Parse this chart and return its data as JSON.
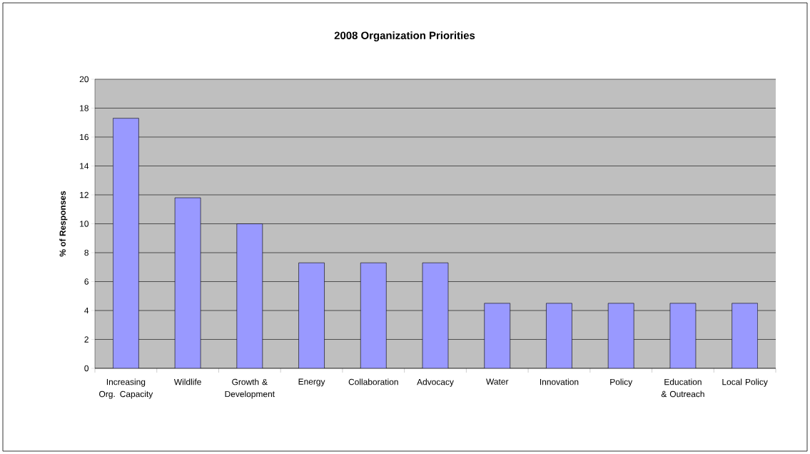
{
  "chart_data": {
    "type": "bar",
    "title": "2008 Organization Priorities",
    "ylabel": "% of Responses",
    "categories": [
      "Increasing Org. Capacity",
      "Wildlife",
      "Growth & Development",
      "Energy",
      "Collaboration",
      "Advocacy",
      "Water",
      "Innovation",
      "Policy",
      "Education & Outreach",
      "Local Policy"
    ],
    "values": [
      17.3,
      11.8,
      10.0,
      7.3,
      7.3,
      7.3,
      4.5,
      4.5,
      4.5,
      4.5,
      4.5
    ],
    "color": "#9999ff",
    "ylim": [
      0,
      20
    ],
    "yticks": [
      0,
      2,
      4,
      6,
      8,
      10,
      12,
      14,
      16,
      18,
      20
    ],
    "grid": "y"
  }
}
